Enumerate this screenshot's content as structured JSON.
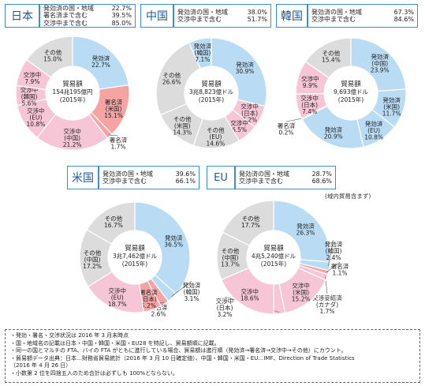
{
  "legend_labels": {
    "row1": "発効済の国・地域",
    "row2": "署名済まで含む",
    "row3": "交渉中まで含む"
  },
  "center_label": "貿易額",
  "colors": {
    "effective": "#b9dcf4",
    "signed": "#f5a3a3",
    "negotiating": "#f7c6d6",
    "other": "#dcdcdc",
    "frame": "#3a8fd0"
  },
  "panels": [
    {
      "key": "japan",
      "name": "日本",
      "summary": [
        {
          "label": "発効済の国・地域",
          "value": "22.7%"
        },
        {
          "label": "署名済まで含む",
          "value": "39.5%"
        },
        {
          "label": "交渉中まで含む",
          "value": "85.0%"
        }
      ],
      "center_amount": "154兆195億円",
      "center_year": "(2015年)"
    },
    {
      "key": "china",
      "name": "中国",
      "summary": [
        {
          "label": "発効済の国・地域",
          "value": "38.0%"
        },
        {
          "label": "交渉中まで含む",
          "value": "51.7%"
        }
      ],
      "center_amount": "3兆8,823億ドル",
      "center_year": "(2015年)"
    },
    {
      "key": "korea",
      "name": "韓国",
      "summary": [
        {
          "label": "発効済の国・地域",
          "value": "67.3%"
        },
        {
          "label": "交渉中まで含む",
          "value": "84.6%"
        }
      ],
      "center_amount": "9,693億ドル",
      "center_year": "(2015年)"
    },
    {
      "key": "usa",
      "name": "米国",
      "summary": [
        {
          "label": "発効済の国・地域",
          "value": "39.6%"
        },
        {
          "label": "交渉中まで含む",
          "value": "66.1%"
        }
      ],
      "center_amount": "3兆7,462億ドル",
      "center_year": "(2015年)"
    },
    {
      "key": "eu",
      "name": "EU",
      "summary": [
        {
          "label": "発効済の国・地域",
          "value": "28.7%"
        },
        {
          "label": "交渉中まで含む",
          "value": "68.6%"
        }
      ],
      "center_amount": "4兆5,240億ドル",
      "center_year": "(2015年)",
      "note": "(域内貿易含まず)"
    }
  ],
  "chart_data": [
    {
      "type": "pie",
      "title": "日本",
      "slices": [
        {
          "label": [
            "発効済"
          ],
          "value": 22.7,
          "cat": "effective"
        },
        {
          "label": [
            "署名済",
            "(米国)"
          ],
          "value": 15.1,
          "cat": "signed"
        },
        {
          "label": [
            "署名済"
          ],
          "value": 1.7,
          "cat": "signed"
        },
        {
          "label": [
            "交渉中",
            "(中国)"
          ],
          "value": 21.2,
          "cat": "negotiating"
        },
        {
          "label": [
            "交渉中",
            "(EU)"
          ],
          "value": 10.8,
          "cat": "negotiating"
        },
        {
          "label": [
            "交渉中",
            "(韓国)"
          ],
          "value": 5.6,
          "cat": "negotiating"
        },
        {
          "label": [
            "交渉中"
          ],
          "value": 7.9,
          "cat": "negotiating"
        },
        {
          "label": [
            "その他"
          ],
          "value": 15.0,
          "cat": "other"
        }
      ]
    },
    {
      "type": "pie",
      "title": "中国",
      "slices": [
        {
          "label": [
            "発効済"
          ],
          "value": 30.9,
          "cat": "effective"
        },
        {
          "label": [
            "交渉中",
            "(日本)"
          ],
          "value": 7.2,
          "cat": "negotiating"
        },
        {
          "label": [
            "交渉中"
          ],
          "value": 6.5,
          "cat": "negotiating"
        },
        {
          "label": [
            "その他",
            "(EU)"
          ],
          "value": 14.6,
          "cat": "other"
        },
        {
          "label": [
            "その他",
            "(米国)"
          ],
          "value": 14.3,
          "cat": "other"
        },
        {
          "label": [
            "その他"
          ],
          "value": 26.6,
          "cat": "other"
        },
        {
          "label": [
            "発効済",
            "(韓国)"
          ],
          "value": 7.1,
          "cat": "effective"
        }
      ]
    },
    {
      "type": "pie",
      "title": "韓国",
      "slices": [
        {
          "label": [
            "発効済",
            "(中国)"
          ],
          "value": 23.9,
          "cat": "effective"
        },
        {
          "label": [
            "発効済",
            "(米国)"
          ],
          "value": 11.7,
          "cat": "effective"
        },
        {
          "label": [
            "発効済",
            "(EU)"
          ],
          "value": 10.8,
          "cat": "effective"
        },
        {
          "label": [
            "発効済"
          ],
          "value": 20.9,
          "cat": "effective"
        },
        {
          "label": [
            "署名済"
          ],
          "value": 0.2,
          "cat": "signed"
        },
        {
          "label": [
            "交渉中",
            "(日本)"
          ],
          "value": 7.4,
          "cat": "negotiating"
        },
        {
          "label": [
            "交渉中"
          ],
          "value": 9.9,
          "cat": "negotiating"
        },
        {
          "label": [
            "その他"
          ],
          "value": 15.4,
          "cat": "other"
        }
      ]
    },
    {
      "type": "pie",
      "title": "米国",
      "slices": [
        {
          "label": [
            "発効済"
          ],
          "value": 36.5,
          "cat": "effective"
        },
        {
          "label": [
            "発効済",
            "(韓国)"
          ],
          "value": 3.1,
          "cat": "effective"
        },
        {
          "label": [
            "署名済"
          ],
          "value": 2.6,
          "cat": "signed"
        },
        {
          "label": [
            "署名済",
            "(日本)"
          ],
          "value": 5.2,
          "cat": "signed"
        },
        {
          "label": [
            "交渉中",
            "(EU)"
          ],
          "value": 18.7,
          "cat": "negotiating"
        },
        {
          "label": [
            "その他",
            "(中国)"
          ],
          "value": 17.2,
          "cat": "other"
        },
        {
          "label": [
            "その他"
          ],
          "value": 16.7,
          "cat": "other"
        }
      ]
    },
    {
      "type": "pie",
      "title": "EU",
      "slices": [
        {
          "label": [
            "発効済"
          ],
          "value": 26.3,
          "cat": "effective"
        },
        {
          "label": [
            "発効済",
            "(韓国)"
          ],
          "value": 2.4,
          "cat": "effective"
        },
        {
          "label": [
            "署名済"
          ],
          "value": 1.1,
          "cat": "signed"
        },
        {
          "label": [
            "交渉妥結済",
            "(カナダ)"
          ],
          "value": 1.7,
          "cat": "negotiating"
        },
        {
          "label": [
            "交渉中",
            "(米国)"
          ],
          "value": 15.2,
          "cat": "negotiating"
        },
        {
          "label": [
            "交渉中",
            "(日本)"
          ],
          "value": 3.2,
          "cat": "negotiating"
        },
        {
          "label": [
            "交渉中"
          ],
          "value": 18.6,
          "cat": "negotiating"
        },
        {
          "label": [
            "その他",
            "(中国)"
          ],
          "value": 13.7,
          "cat": "other"
        },
        {
          "label": [
            "その他"
          ],
          "value": 17.7,
          "cat": "other"
        }
      ]
    }
  ],
  "notes": [
    "・発効・署名・交渉状況は 2016 年 3 月末時点",
    "・国・地域名の記載は日本・中国・韓国・米国・EU28 を特記し、貿易額順に記載。",
    "・同一の国とマルチの FTA、バイの FTA がともに進行している場合、貿易額は進行順（発効済→署名済→交渉中→その他）にカウント。",
    "・貿易額データ出典：日本…財務省貿易統計（2016 年 3 月 10 日確定値）、中国・韓国・米国・EU…IMF、Direction of Trade Statistics",
    "（2016 年 4 月 26 日）",
    "・小数第 2 位を四捨五入のため合計は必ずしも 100%とならない。"
  ]
}
